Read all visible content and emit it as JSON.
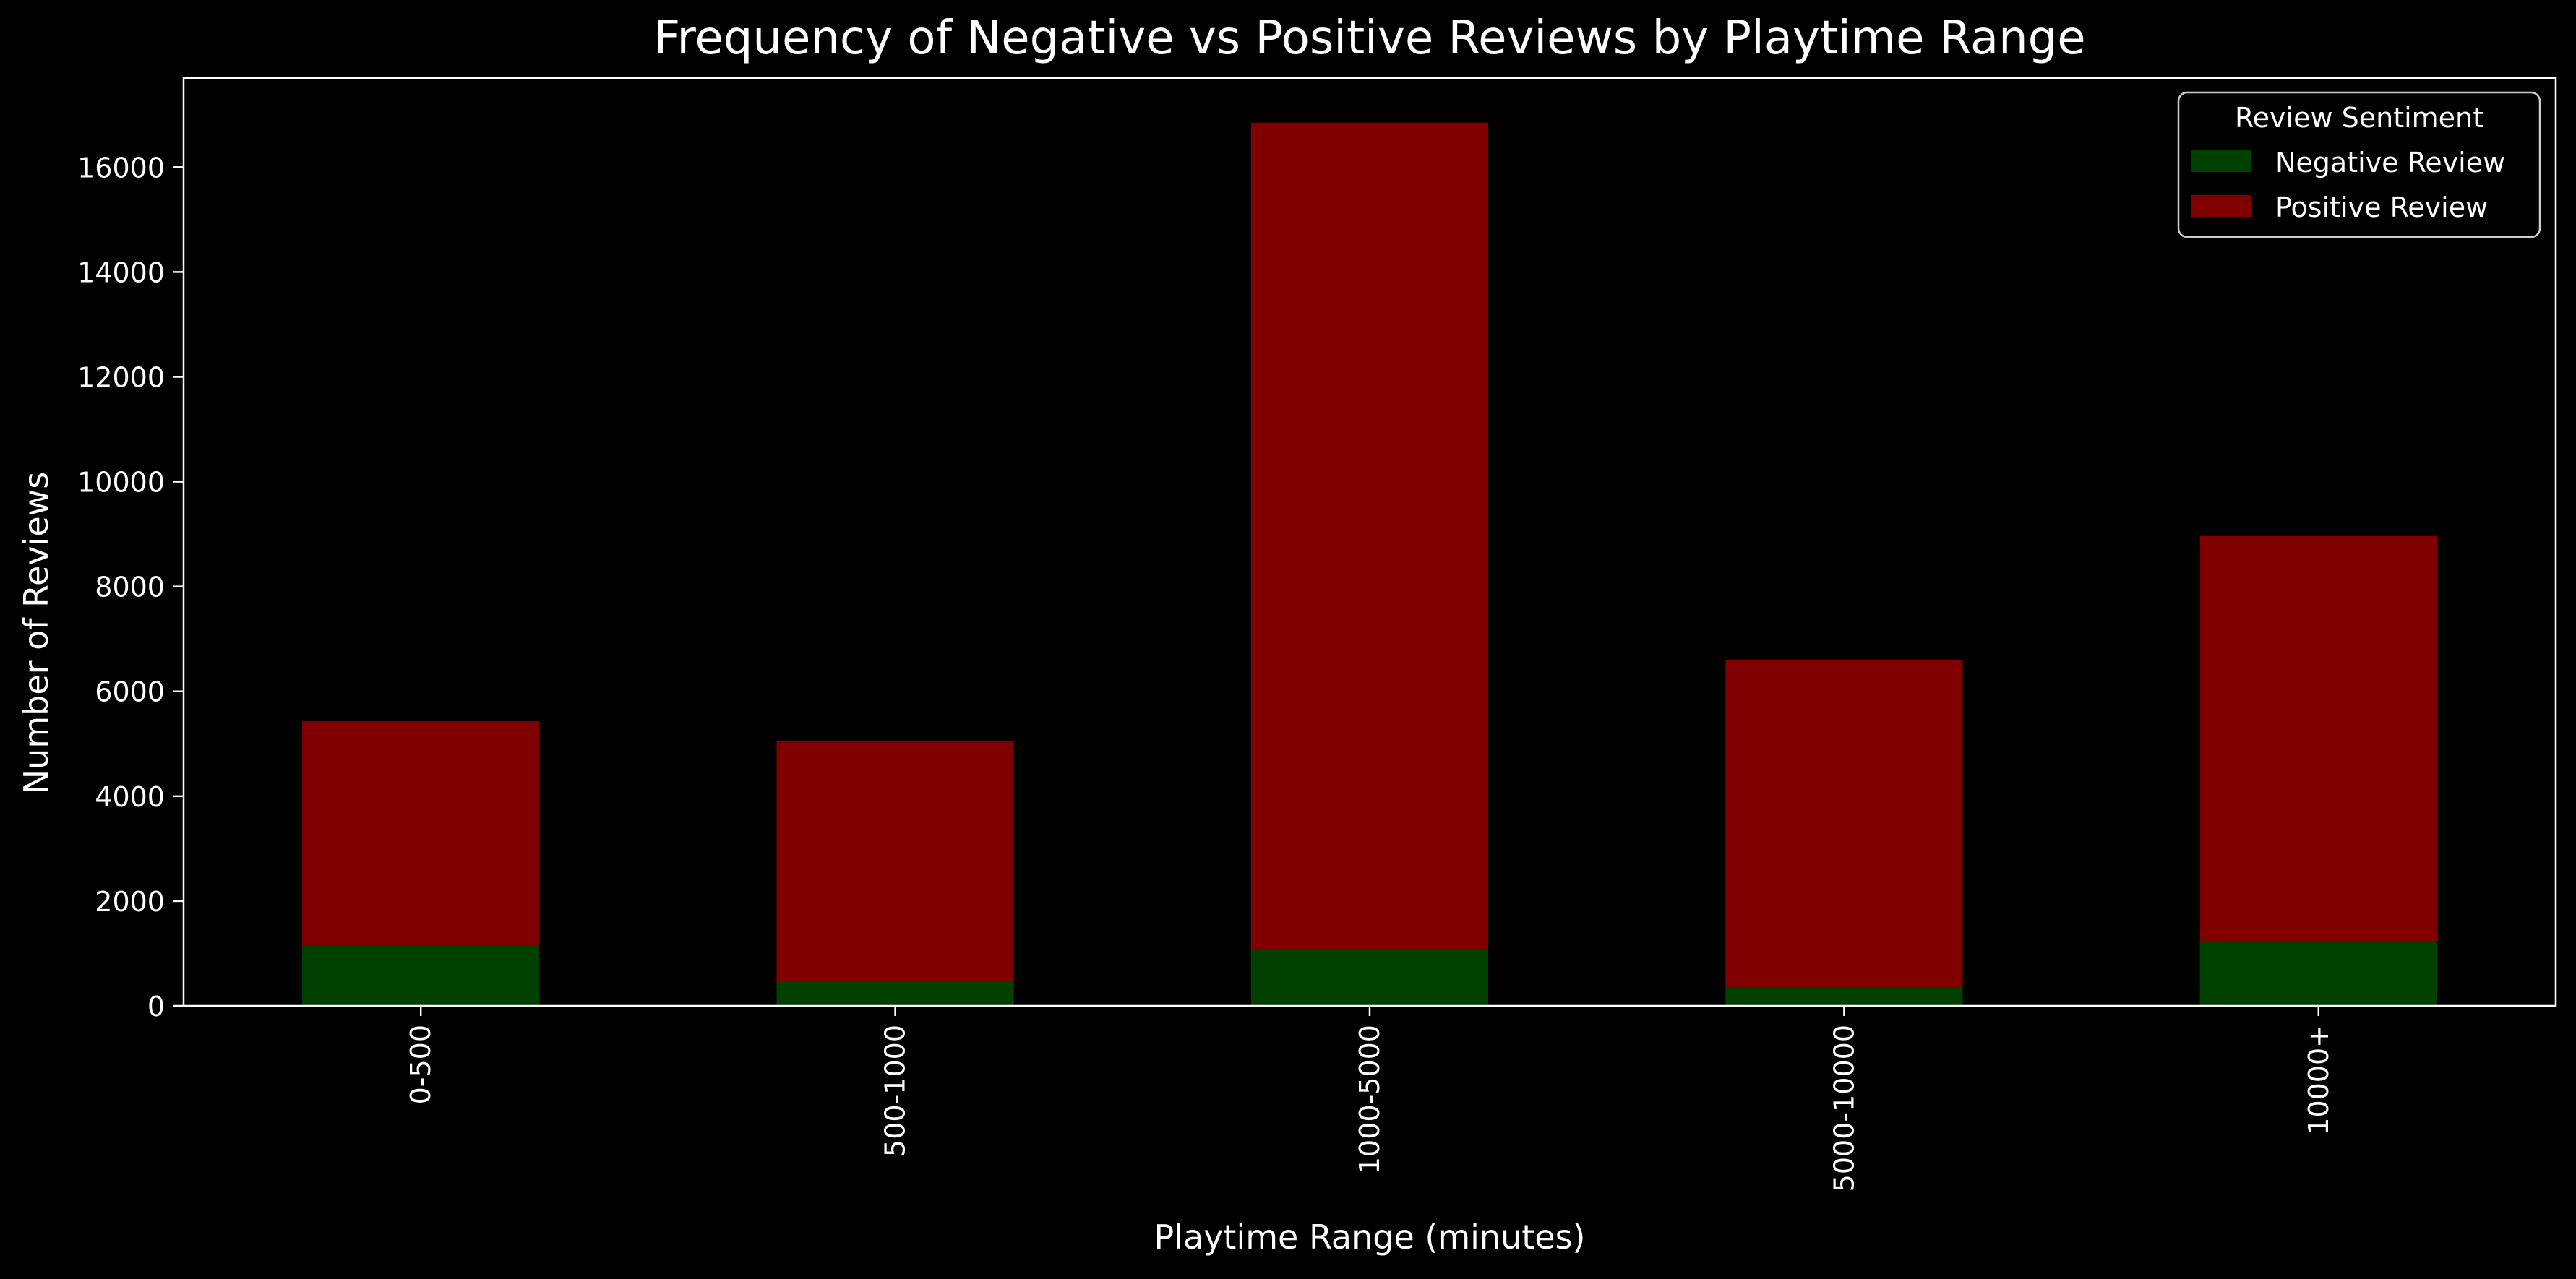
{
  "chart_data": {
    "type": "bar",
    "stacked": true,
    "title": "Frequency of Negative vs Positive Reviews by Playtime Range",
    "xlabel": "Playtime Range (minutes)",
    "ylabel": "Number of Reviews",
    "ylim": [
      0,
      17700
    ],
    "yticks": [
      0,
      2000,
      4000,
      6000,
      8000,
      10000,
      12000,
      14000,
      16000
    ],
    "categories": [
      "0-500",
      "500-1000",
      "1000-5000",
      "5000-10000",
      "10000+"
    ],
    "series": [
      {
        "name": "Negative Review",
        "color": "#004000",
        "values": [
          1150,
          480,
          1080,
          350,
          1220
        ]
      },
      {
        "name": "Positive Review",
        "color": "#800000",
        "values": [
          4280,
          4570,
          15770,
          6250,
          7740
        ]
      }
    ],
    "legend": {
      "title": "Review Sentiment",
      "position": "top-right"
    },
    "grid": false,
    "background": "#000000",
    "foreground": "#ffffff"
  }
}
